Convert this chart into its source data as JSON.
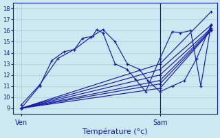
{
  "bg_color": "#cce8f0",
  "grid_color": "#aaccdd",
  "line_color": "#1a1aaa",
  "xlabel": "Température (°c)",
  "ylim": [
    8.5,
    18.5
  ],
  "xlim": [
    0,
    1.0
  ],
  "ytick_vals": [
    9,
    10,
    11,
    12,
    13,
    14,
    15,
    16,
    17,
    18
  ],
  "xtick_positions": [
    0.04,
    0.72
  ],
  "xtick_labels": [
    "Ven",
    "Sam"
  ],
  "vline_x": 0.72,
  "lines": [
    {
      "x": [
        0.04,
        0.13,
        0.19,
        0.25,
        0.3,
        0.34,
        0.39,
        0.41,
        0.44,
        0.5,
        0.56,
        0.6,
        0.65,
        0.72,
        0.78,
        0.82,
        0.87,
        0.92,
        0.97
      ],
      "y": [
        9.0,
        11.0,
        13.3,
        14.1,
        14.3,
        15.3,
        15.5,
        16.1,
        15.8,
        13.0,
        12.5,
        11.6,
        10.5,
        13.5,
        15.9,
        15.8,
        16.0,
        11.0,
        16.5
      ]
    },
    {
      "x": [
        0.04,
        0.72,
        0.97
      ],
      "y": [
        9.0,
        13.0,
        17.7
      ]
    },
    {
      "x": [
        0.04,
        0.72,
        0.97
      ],
      "y": [
        9.0,
        12.5,
        16.5
      ]
    },
    {
      "x": [
        0.04,
        0.72,
        0.97
      ],
      "y": [
        9.0,
        12.0,
        16.2
      ]
    },
    {
      "x": [
        0.04,
        0.72,
        0.97
      ],
      "y": [
        9.0,
        11.5,
        16.1
      ]
    },
    {
      "x": [
        0.04,
        0.72,
        0.97
      ],
      "y": [
        9.0,
        11.2,
        16.0
      ]
    },
    {
      "x": [
        0.04,
        0.72,
        0.97
      ],
      "y": [
        9.0,
        10.8,
        16.0
      ]
    },
    {
      "x": [
        0.04,
        0.13,
        0.22,
        0.3,
        0.38,
        0.44,
        0.5,
        0.56,
        0.62,
        0.66,
        0.72,
        0.78,
        0.84,
        0.9,
        0.97
      ],
      "y": [
        9.3,
        11.1,
        13.5,
        14.3,
        15.4,
        16.1,
        15.0,
        13.0,
        12.5,
        11.5,
        10.5,
        11.0,
        11.5,
        13.5,
        16.5
      ]
    }
  ]
}
